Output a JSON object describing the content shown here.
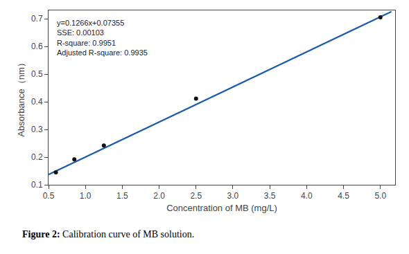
{
  "chart_data": {
    "type": "scatter",
    "xlabel": "Concentration of MB (mg/L)",
    "ylabel": "Absorbance（nm）",
    "annotations": [
      "y=0.1266x+0.07355",
      "SSE: 0.00103",
      "R-square: 0.9951",
      "Adjusted R-square: 0.9935"
    ],
    "caption": {
      "label": "Figure 2:",
      "text": "Calibration curve of MB solution."
    },
    "series": [
      {
        "type": "line",
        "color": "#1a5ca8",
        "x": [
          0.5,
          5.15
        ],
        "values": [
          0.13685,
          0.72554
        ]
      },
      {
        "type": "scatter",
        "color": "#111111",
        "marker": "circle",
        "x": [
          0.6,
          0.85,
          1.25,
          2.5,
          5.0
        ],
        "values": [
          0.145,
          0.192,
          0.242,
          0.411,
          0.705
        ]
      }
    ],
    "xlim": [
      0.5,
      5.2
    ],
    "ylim": [
      0.1,
      0.73
    ],
    "xticks": [
      0.5,
      {
        "value": 1,
        "label": "1.0"
      },
      1.5,
      {
        "value": 2,
        "label": "2.0"
      },
      2.5,
      {
        "value": 3,
        "label": "3.0"
      },
      3.5,
      {
        "value": 4,
        "label": "4.0"
      },
      4.5,
      {
        "value": 5,
        "label": "5.0"
      }
    ],
    "yticks": [
      0.1,
      0.2,
      0.3,
      0.4,
      0.5,
      0.6,
      0.7
    ],
    "grid": false
  }
}
